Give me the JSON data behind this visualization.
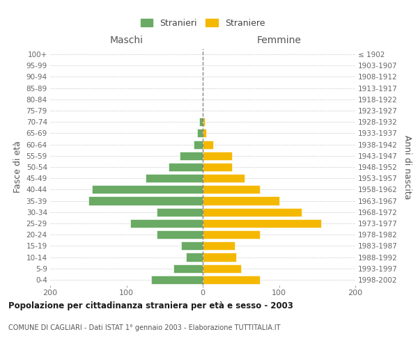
{
  "age_groups": [
    "100+",
    "95-99",
    "90-94",
    "85-89",
    "80-84",
    "75-79",
    "70-74",
    "65-69",
    "60-64",
    "55-59",
    "50-54",
    "45-49",
    "40-44",
    "35-39",
    "30-34",
    "25-29",
    "20-24",
    "15-19",
    "10-14",
    "5-9",
    "0-4"
  ],
  "birth_years": [
    "≤ 1902",
    "1903-1907",
    "1908-1912",
    "1913-1917",
    "1918-1922",
    "1923-1927",
    "1928-1932",
    "1933-1937",
    "1938-1942",
    "1943-1947",
    "1948-1952",
    "1953-1957",
    "1958-1962",
    "1963-1967",
    "1968-1972",
    "1973-1977",
    "1978-1982",
    "1983-1987",
    "1988-1992",
    "1993-1997",
    "1998-2002"
  ],
  "maschi": [
    0,
    0,
    0,
    0,
    0,
    0,
    5,
    7,
    12,
    30,
    45,
    75,
    145,
    150,
    60,
    95,
    60,
    28,
    22,
    38,
    68
  ],
  "femmine": [
    0,
    0,
    0,
    0,
    0,
    0,
    3,
    5,
    14,
    38,
    38,
    55,
    75,
    100,
    130,
    155,
    75,
    42,
    44,
    50,
    75
  ],
  "maschi_color": "#6aaa64",
  "femmine_color": "#f5b800",
  "title": "Popolazione per cittadinanza straniera per età e sesso - 2003",
  "subtitle": "COMUNE DI CAGLIARI - Dati ISTAT 1° gennaio 2003 - Elaborazione TUTTITALIA.IT",
  "legend_maschi": "Stranieri",
  "legend_femmine": "Straniere",
  "label_maschi": "Maschi",
  "label_femmine": "Femmine",
  "ylabel_left": "Fasce di età",
  "ylabel_right": "Anni di nascita",
  "xlim": 200,
  "xtick_values": [
    -200,
    -100,
    0,
    100,
    200
  ],
  "xtick_labels": [
    "200",
    "100",
    "0",
    "100",
    "200"
  ],
  "background_color": "#ffffff",
  "grid_color": "#cccccc"
}
